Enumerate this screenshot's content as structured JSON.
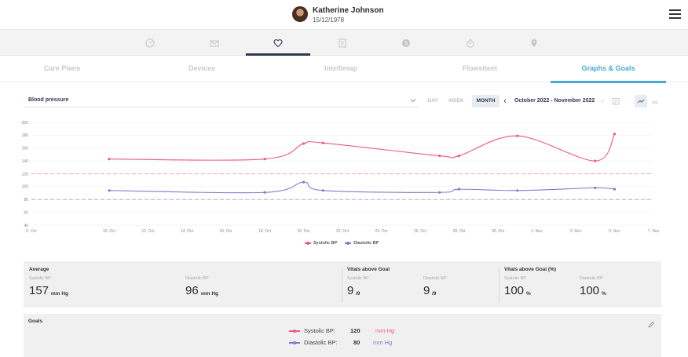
{
  "colors": {
    "accent_teal": "#4ba9cf",
    "navy": "#2e3a52",
    "systolic": "#ef5a7a",
    "diastolic": "#8b77c9",
    "systolic_goal": "#f4a3b0",
    "diastolic_goal": "#b7aedd"
  },
  "header": {
    "patient_name": "Katherine Johnson",
    "patient_dob": "15/12/1978",
    "menu_icon": "hamburger-menu-icon"
  },
  "icon_nav": {
    "items": [
      {
        "icon": "gauge-icon",
        "active": false
      },
      {
        "icon": "mail-icon",
        "active": false
      },
      {
        "icon": "heart-icon",
        "active": true
      },
      {
        "icon": "document-icon",
        "active": false
      },
      {
        "icon": "dollar-icon",
        "active": false
      },
      {
        "icon": "stopwatch-icon",
        "active": false
      },
      {
        "icon": "location-pin-icon",
        "active": false
      }
    ]
  },
  "tabs": {
    "items": [
      {
        "label": "Care Plans",
        "active": false
      },
      {
        "label": "Devices",
        "active": false
      },
      {
        "label": "Intellimap",
        "active": false
      },
      {
        "label": "Flowsheet",
        "active": false
      },
      {
        "label": "Graphs & Goals",
        "active": true
      }
    ]
  },
  "toolbar": {
    "vital_selected": "Blood pressure",
    "period_day": "DAY",
    "period_week": "WEEK",
    "period_month": "MONTH",
    "active_period": "MONTH",
    "date_range": "October 2022 - November 2022",
    "tools": [
      "calendar-icon",
      "line-chart-icon",
      "bar-chart-icon"
    ]
  },
  "chart_data": {
    "type": "line",
    "title": "",
    "xlabel": "",
    "ylabel": "",
    "ylim": [
      40,
      200
    ],
    "yticks": [
      40,
      60,
      80,
      100,
      120,
      140,
      160,
      180,
      200
    ],
    "x_start_day": 6,
    "xticks": [
      {
        "label": "6. Oct",
        "day": 6
      },
      {
        "label": "10. Oct",
        "day": 10
      },
      {
        "label": "12. Oct",
        "day": 12
      },
      {
        "label": "14. Oct",
        "day": 14
      },
      {
        "label": "16. Oct",
        "day": 16
      },
      {
        "label": "18. Oct",
        "day": 18
      },
      {
        "label": "20. Oct",
        "day": 20
      },
      {
        "label": "22. Oct",
        "day": 22
      },
      {
        "label": "24. Oct",
        "day": 24
      },
      {
        "label": "26. Oct",
        "day": 26
      },
      {
        "label": "28. Oct",
        "day": 28
      },
      {
        "label": "30. Oct",
        "day": 30
      },
      {
        "label": "1. Nov",
        "day": 32
      },
      {
        "label": "3. Nov",
        "day": 34
      },
      {
        "label": "5. Nov",
        "day": 36
      },
      {
        "label": "7. Nov",
        "day": 38
      }
    ],
    "x_range": [
      6,
      38
    ],
    "goal_lines": [
      {
        "series": "Systolic BP",
        "value": 120
      },
      {
        "series": "Diastolic BP",
        "value": 80
      }
    ],
    "series": [
      {
        "name": "Systolic BP",
        "color": "#ef5a7a",
        "points": [
          {
            "day": 10,
            "value": 143
          },
          {
            "day": 18,
            "value": 143
          },
          {
            "day": 20,
            "value": 167
          },
          {
            "day": 21,
            "value": 168
          },
          {
            "day": 27,
            "value": 148
          },
          {
            "day": 28,
            "value": 148
          },
          {
            "day": 31,
            "value": 179
          },
          {
            "day": 35,
            "value": 140
          },
          {
            "day": 36,
            "value": 182
          }
        ]
      },
      {
        "name": "Diastolic BP",
        "color": "#8b77c9",
        "points": [
          {
            "day": 10,
            "value": 94
          },
          {
            "day": 18,
            "value": 91
          },
          {
            "day": 20,
            "value": 107
          },
          {
            "day": 21,
            "value": 94
          },
          {
            "day": 27,
            "value": 91
          },
          {
            "day": 28,
            "value": 96
          },
          {
            "day": 31,
            "value": 94
          },
          {
            "day": 35,
            "value": 98
          },
          {
            "day": 36,
            "value": 96
          }
        ]
      }
    ],
    "legend": [
      "Systolic BP",
      "Diastolic BP"
    ],
    "legend_position": "bottom-center",
    "grid": "horizontal"
  },
  "stats": {
    "average": {
      "title": "Average",
      "systolic_label": "Systolic BP",
      "systolic_value": "157",
      "systolic_unit": "mm Hg",
      "diastolic_label": "Diastolic BP",
      "diastolic_value": "96",
      "diastolic_unit": "mm Hg"
    },
    "above_goal": {
      "title": "Vitals above Goal",
      "systolic_label": "Systolic BP",
      "systolic_value": "9",
      "systolic_unit": "/9",
      "diastolic_label": "Diastolic BP",
      "diastolic_value": "9",
      "diastolic_unit": "/9"
    },
    "above_goal_pct": {
      "title": "Vitals above Goal (%)",
      "systolic_label": "Systolic BP",
      "systolic_value": "100",
      "systolic_unit": "%",
      "diastolic_label": "Diastolic BP",
      "diastolic_value": "100",
      "diastolic_unit": "%"
    }
  },
  "goals": {
    "title": "Goals",
    "edit_icon": "pencil-icon",
    "systolic_label": "Systolic BP:",
    "systolic_value": "120",
    "systolic_unit": "mm Hg",
    "diastolic_label": "Diastolic BP:",
    "diastolic_value": "80",
    "diastolic_unit": "mm Hg"
  }
}
